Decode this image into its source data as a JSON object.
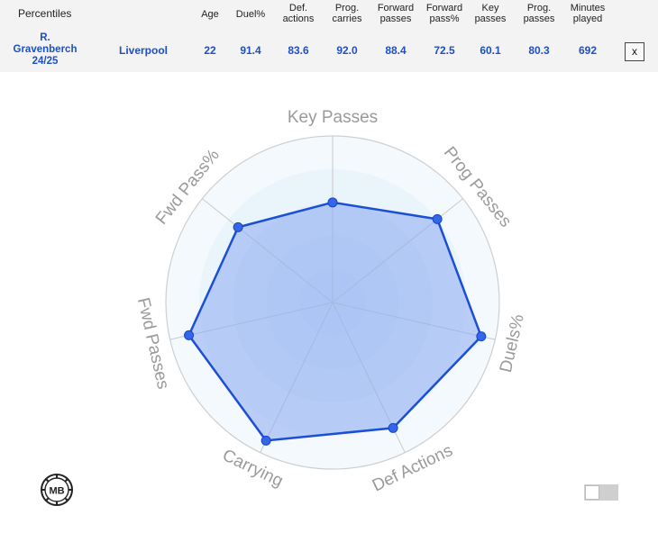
{
  "table": {
    "header_label": "Percentiles",
    "columns": [
      "Age",
      "Duel%",
      "Def.\nactions",
      "Prog.\ncarries",
      "Forward\npasses",
      "Forward\npass%",
      "Key\npasses",
      "Prog.\npasses",
      "Minutes\nplayed"
    ],
    "player": "R.\nGravenberch\n24/25",
    "team": "Liverpool",
    "values": [
      "22",
      "91.4",
      "83.6",
      "92.0",
      "88.4",
      "72.5",
      "60.1",
      "80.3",
      "692"
    ],
    "close_label": "x"
  },
  "logo_text": "MB",
  "chart_data": {
    "type": "radar",
    "axes": [
      "Key Passes",
      "Prog Passes",
      "Duels%",
      "Def Actions",
      "Carrying",
      "Fwd Passes",
      "Fwd Pass%"
    ],
    "values": [
      60.1,
      80.3,
      91.4,
      83.6,
      92.0,
      88.4,
      72.5
    ],
    "range": [
      0,
      100
    ],
    "colors": {
      "line": "#1a4fd6",
      "fill": "#8aaaf2",
      "point": "#3366e8",
      "label": "#9a9a9a",
      "ring": "#e8f4f8"
    }
  }
}
